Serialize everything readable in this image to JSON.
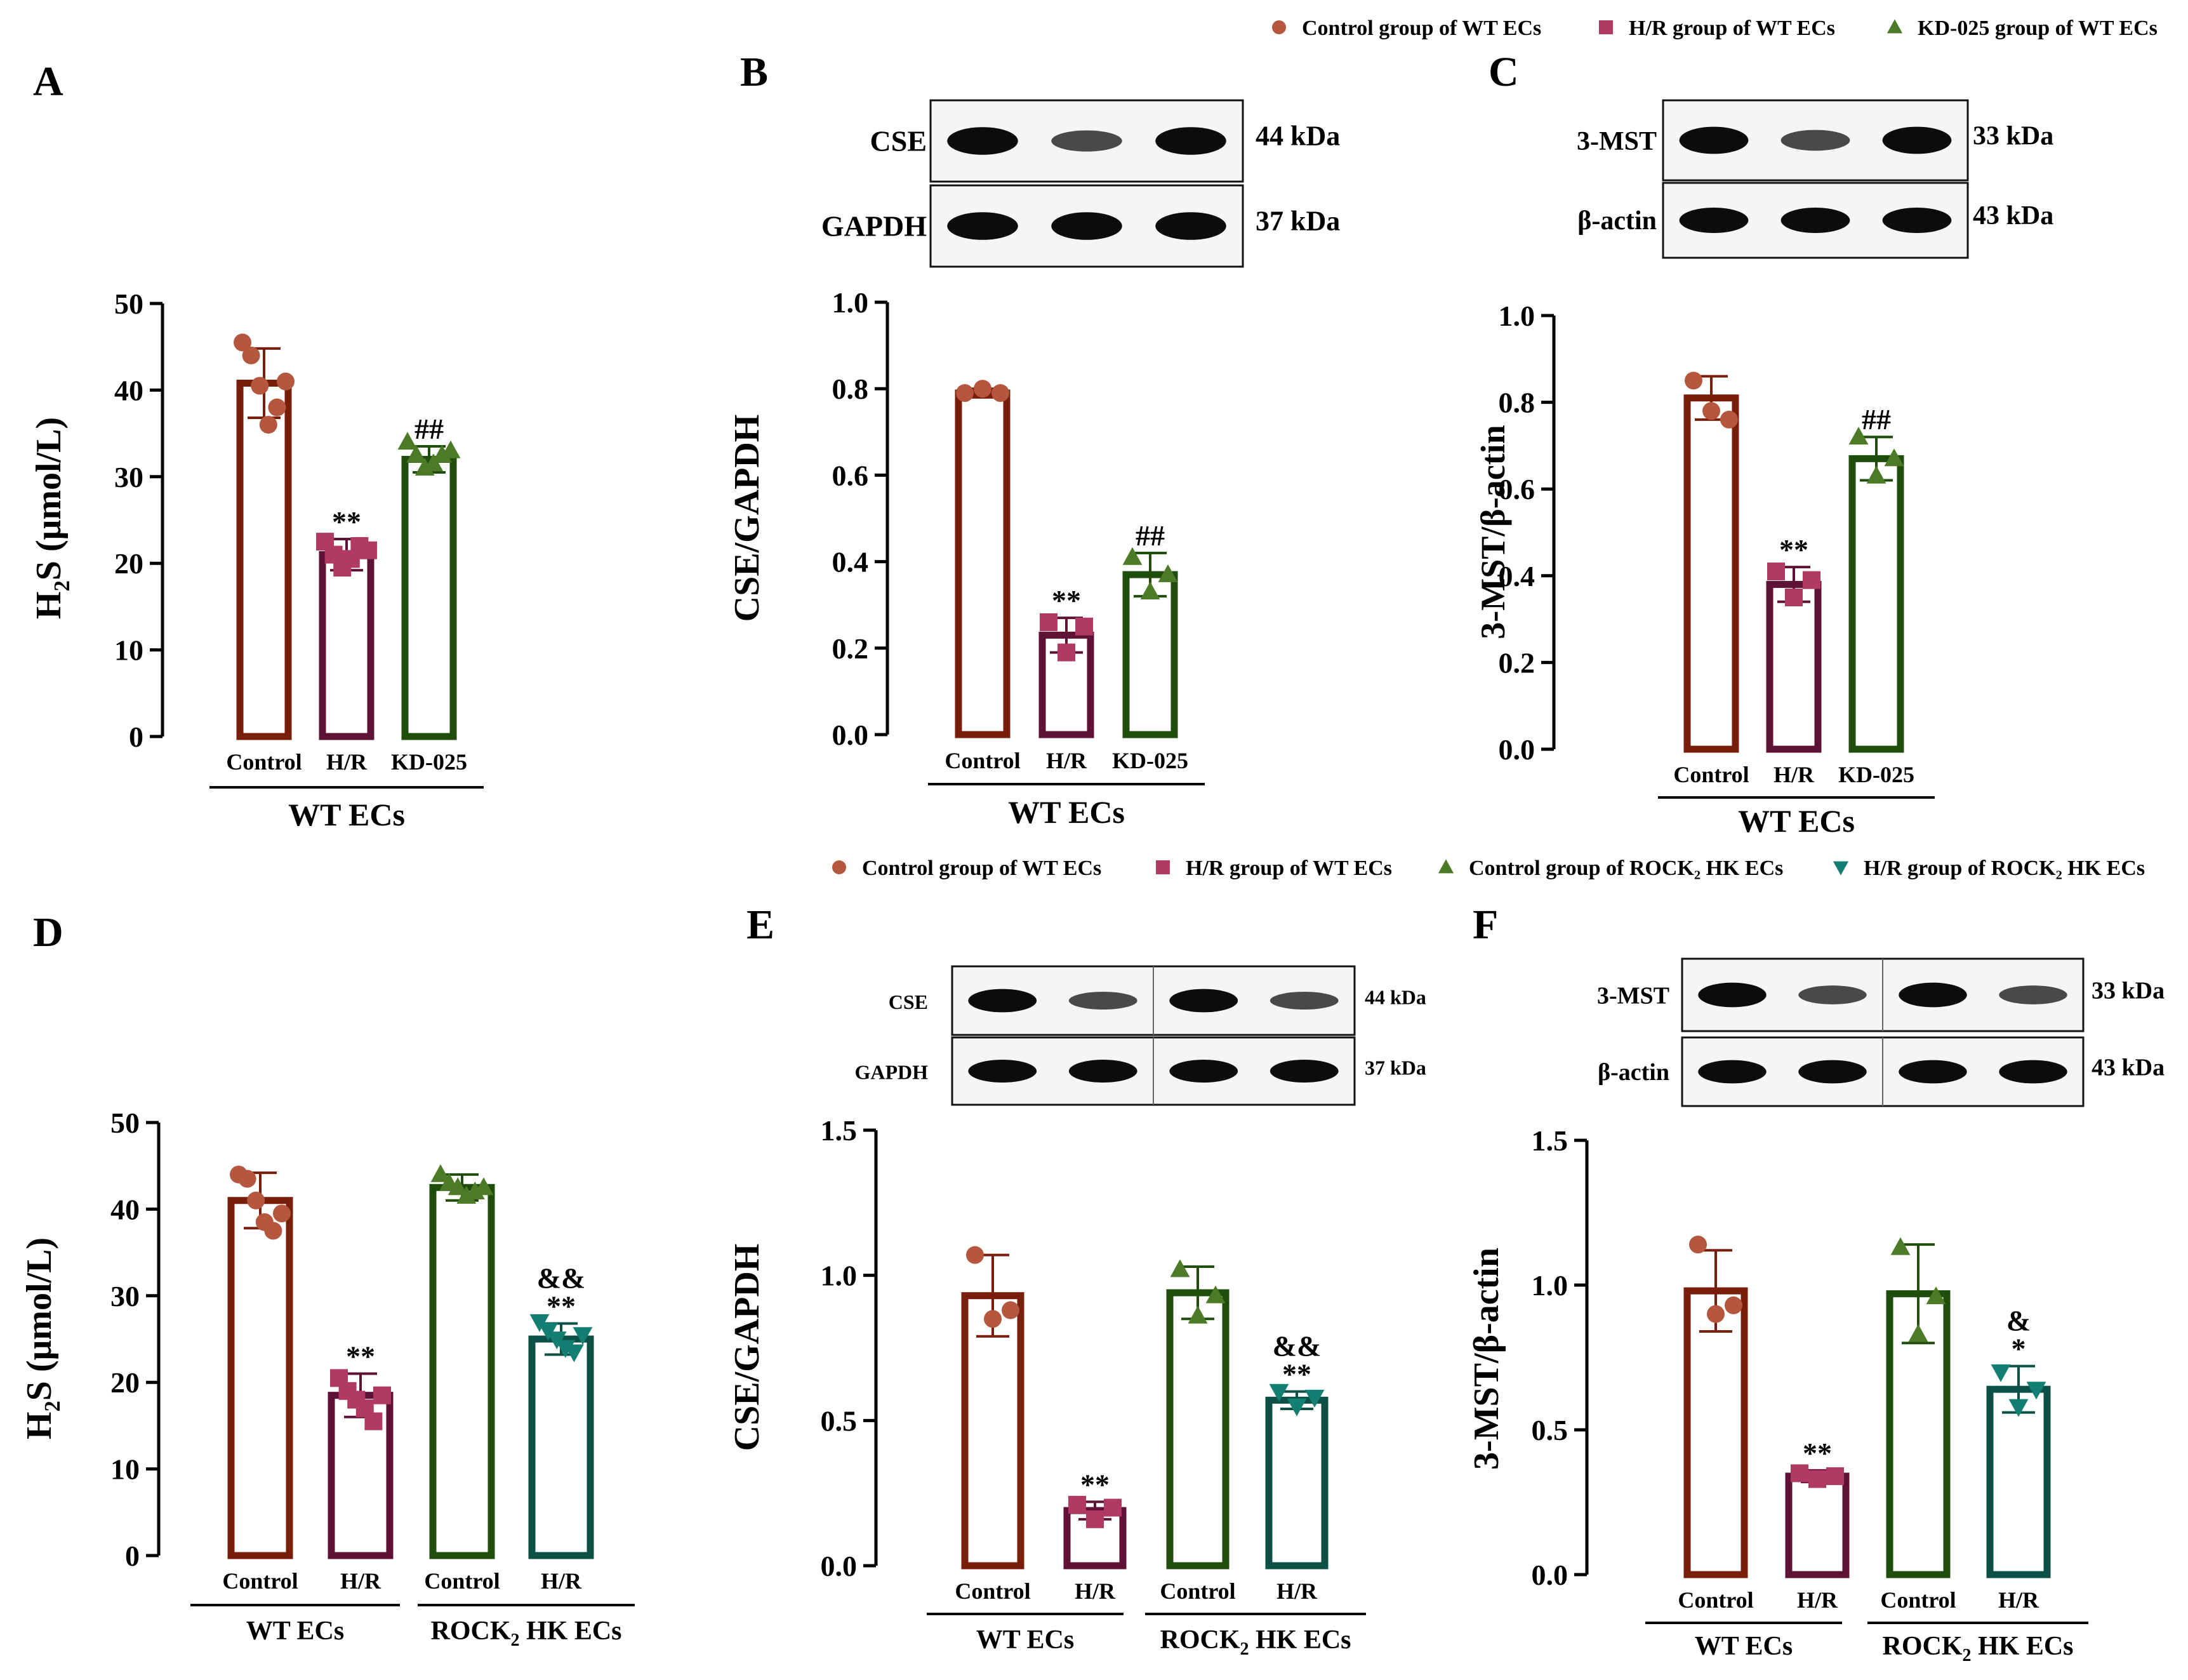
{
  "figure_caption": "",
  "legend_top": {
    "items": [
      {
        "label": "Control group of WT ECs",
        "marker": "circle",
        "color": "#b5573f"
      },
      {
        "label": "H/R group of WT ECs",
        "marker": "square",
        "color": "#b03a64"
      },
      {
        "label": "KD-025 group of WT ECs",
        "marker": "triangle-up",
        "color": "#4d7a26"
      }
    ]
  },
  "legend_bottom": {
    "items": [
      {
        "label": "Control group of WT ECs",
        "marker": "circle",
        "color": "#b5573f"
      },
      {
        "label": "H/R group of WT ECs",
        "marker": "square",
        "color": "#b03a64"
      },
      {
        "label": "Control group of ROCK₂ HK ECs",
        "marker": "triangle-up",
        "color": "#4d7a26"
      },
      {
        "label": "H/R group of ROCK₂ HK ECs",
        "marker": "triangle-down",
        "color": "#137f72"
      }
    ]
  },
  "colors": {
    "control_bar": "#7a1e0c",
    "hr_bar": "#5e1236",
    "kd_bar": "#1f4d0c",
    "rock_hr_bar": "#0d5047",
    "control_dot": "#b5573f",
    "hr_dot": "#b03a64",
    "kd_dot": "#4d7a26",
    "rock_hr_dot": "#137f72"
  },
  "blots": {
    "B": {
      "rows": [
        {
          "name": "CSE",
          "kda": "44 kDa"
        },
        {
          "name": "GAPDH",
          "kda": "37 kDa"
        }
      ]
    },
    "C": {
      "rows": [
        {
          "name": "3-MST",
          "kda": "33 kDa"
        },
        {
          "name": "β-actin",
          "kda": "43 kDa"
        }
      ]
    },
    "E": {
      "rows": [
        {
          "name": "CSE",
          "kda": "44 kDa"
        },
        {
          "name": "GAPDH",
          "kda": "37 kDa"
        }
      ]
    },
    "F": {
      "rows": [
        {
          "name": "3-MST",
          "kda": "33 kDa"
        },
        {
          "name": "β-actin",
          "kda": "43 kDa"
        }
      ]
    }
  },
  "chart_data": [
    {
      "panel": "A",
      "type": "bar",
      "ylabel_main": "H",
      "ylabel_sub": "2",
      "ylabel_rest": "S (μmol/L)",
      "ylim": [
        0,
        50
      ],
      "yticks": [
        "0",
        "10",
        "20",
        "30",
        "40",
        "50"
      ],
      "categories": [
        "Control",
        "H/R",
        "KD-025"
      ],
      "groups": [
        {
          "label": "WT ECs"
        }
      ],
      "values": [
        40.8,
        21.0,
        32.0
      ],
      "errors": [
        4.0,
        1.8,
        1.5
      ],
      "points": [
        [
          45.5,
          44.0,
          40.5,
          36.0,
          38.0,
          41.0
        ],
        [
          22.5,
          21.0,
          19.5,
          20.5,
          22.0,
          21.5
        ],
        [
          34.0,
          32.5,
          31.0,
          31.5,
          32.5,
          33.0
        ]
      ],
      "annotations": [
        [
          "",
          ""
        ],
        [
          "",
          "**"
        ],
        [
          "",
          "##"
        ]
      ]
    },
    {
      "panel": "B",
      "type": "bar",
      "ylabel": "CSE/GAPDH",
      "ylim": [
        0,
        1.0
      ],
      "yticks": [
        "0.0",
        "0.2",
        "0.4",
        "0.6",
        "0.8",
        "1.0"
      ],
      "categories": [
        "Control",
        "H/R",
        "KD-025"
      ],
      "groups": [
        {
          "label": "WT ECs"
        }
      ],
      "values": [
        0.79,
        0.23,
        0.37
      ],
      "errors": [
        0.01,
        0.04,
        0.05
      ],
      "points": [
        [
          0.79,
          0.8,
          0.79
        ],
        [
          0.26,
          0.19,
          0.25
        ],
        [
          0.41,
          0.33,
          0.37
        ]
      ],
      "annotations": [
        [
          "",
          ""
        ],
        [
          "",
          "**"
        ],
        [
          "",
          "##"
        ]
      ]
    },
    {
      "panel": "C",
      "type": "bar",
      "ylabel": "3-MST/β-actin",
      "ylim": [
        0,
        1.0
      ],
      "yticks": [
        "0.0",
        "0.2",
        "0.4",
        "0.6",
        "0.8",
        "1.0"
      ],
      "categories": [
        "Control",
        "H/R",
        "KD-025"
      ],
      "groups": [
        {
          "label": "WT ECs"
        }
      ],
      "values": [
        0.81,
        0.38,
        0.67
      ],
      "errors": [
        0.05,
        0.04,
        0.05
      ],
      "points": [
        [
          0.85,
          0.78,
          0.76
        ],
        [
          0.41,
          0.35,
          0.39
        ],
        [
          0.72,
          0.63,
          0.67
        ]
      ],
      "annotations": [
        [
          "",
          ""
        ],
        [
          "",
          "**"
        ],
        [
          "",
          "##"
        ]
      ]
    },
    {
      "panel": "D",
      "type": "bar",
      "ylabel_main": "H",
      "ylabel_sub": "2",
      "ylabel_rest": "S (μmol/L)",
      "ylim": [
        0,
        50
      ],
      "yticks": [
        "0",
        "10",
        "20",
        "30",
        "40",
        "50"
      ],
      "categories": [
        "Control",
        "H/R",
        "Control",
        "H/R"
      ],
      "groups": [
        {
          "label": "WT ECs",
          "rock": false
        },
        {
          "label": "ROCK",
          "rock": true,
          "sub": "2",
          "rest": " HK ECs"
        }
      ],
      "values": [
        41.0,
        18.5,
        42.5,
        25.0
      ],
      "errors": [
        3.2,
        2.5,
        1.5,
        1.8
      ],
      "points": [
        [
          44.0,
          43.5,
          41.0,
          38.5,
          37.5,
          39.5
        ],
        [
          20.5,
          19.0,
          18.0,
          17.0,
          15.5,
          18.5
        ],
        [
          44.0,
          43.0,
          42.5,
          41.5,
          42.0,
          42.5
        ],
        [
          27.0,
          26.0,
          25.0,
          24.0,
          23.5,
          25.5
        ]
      ],
      "annotations": [
        [
          "",
          ""
        ],
        [
          "",
          "**"
        ],
        [
          "",
          ""
        ],
        [
          "&&",
          "**"
        ]
      ]
    },
    {
      "panel": "E",
      "type": "bar",
      "ylabel": "CSE/GAPDH",
      "ylim": [
        0,
        1.5
      ],
      "yticks": [
        "0.0",
        "0.5",
        "1.0",
        "1.5"
      ],
      "categories": [
        "Control",
        "H/R",
        "Control",
        "H/R"
      ],
      "groups": [
        {
          "label": "WT ECs",
          "rock": false
        },
        {
          "label": "ROCK",
          "rock": true,
          "sub": "2",
          "rest": " HK ECs"
        }
      ],
      "values": [
        0.93,
        0.19,
        0.94,
        0.57
      ],
      "errors": [
        0.14,
        0.03,
        0.09,
        0.03
      ],
      "points": [
        [
          1.07,
          0.85,
          0.88
        ],
        [
          0.21,
          0.16,
          0.2
        ],
        [
          1.02,
          0.86,
          0.93
        ],
        [
          0.6,
          0.55,
          0.58
        ]
      ],
      "annotations": [
        [
          "",
          ""
        ],
        [
          "",
          "**"
        ],
        [
          "",
          ""
        ],
        [
          "&&",
          "**"
        ]
      ]
    },
    {
      "panel": "F",
      "type": "bar",
      "ylabel": "3-MST/β-actin",
      "ylim": [
        0,
        1.5
      ],
      "yticks": [
        "0.0",
        "0.5",
        "1.0",
        "1.5"
      ],
      "categories": [
        "Control",
        "H/R",
        "Control",
        "H/R"
      ],
      "groups": [
        {
          "label": "WT ECs",
          "rock": false
        },
        {
          "label": "ROCK",
          "rock": true,
          "sub": "2",
          "rest": " HK ECs"
        }
      ],
      "values": [
        0.98,
        0.34,
        0.97,
        0.64
      ],
      "errors": [
        0.14,
        0.02,
        0.17,
        0.08
      ],
      "points": [
        [
          1.14,
          0.9,
          0.93
        ],
        [
          0.35,
          0.33,
          0.34
        ],
        [
          1.13,
          0.83,
          0.96
        ],
        [
          0.7,
          0.58,
          0.64
        ]
      ],
      "annotations": [
        [
          "",
          ""
        ],
        [
          "",
          "**"
        ],
        [
          "",
          ""
        ],
        [
          "&",
          "*"
        ]
      ]
    }
  ]
}
